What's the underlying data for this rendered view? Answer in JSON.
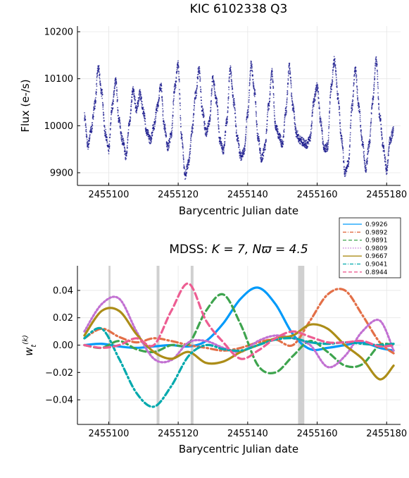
{
  "chart_data": [
    {
      "type": "scatter",
      "title": "KIC 6102338 Q3",
      "xlabel": "Barycentric Julian date",
      "ylabel": "Flux (e-/s)",
      "xlim": [
        2455091,
        2455184
      ],
      "ylim": [
        9873,
        10212
      ],
      "xticks": [
        2455100,
        2455120,
        2455140,
        2455160,
        2455180
      ],
      "yticks": [
        9900,
        10000,
        10100,
        10200
      ],
      "xtick_labels": [
        "2455100",
        "2455120",
        "2455140",
        "2455160",
        "2455180"
      ],
      "ytick_labels": [
        "9900",
        "10000",
        "10100",
        "10200"
      ],
      "grid": true,
      "marker_color": "#1a1a8c",
      "series": [
        {
          "points": [
            [
              2455093.0,
              10020
            ],
            [
              2455094.0,
              9958
            ],
            [
              2455095.0,
              9992
            ],
            [
              2455096.0,
              10045
            ],
            [
              2455097.0,
              10122
            ],
            [
              2455098.0,
              10070
            ],
            [
              2455099.0,
              9985
            ],
            [
              2455100.0,
              9948
            ],
            [
              2455101.0,
              10040
            ],
            [
              2455102.0,
              10095
            ],
            [
              2455103.0,
              10010
            ],
            [
              2455104.0,
              9968
            ],
            [
              2455105.0,
              9935
            ],
            [
              2455106.0,
              10010
            ],
            [
              2455107.0,
              10075
            ],
            [
              2455108.0,
              10035
            ],
            [
              2455109.0,
              10068
            ],
            [
              2455110.0,
              10030
            ],
            [
              2455111.0,
              9985
            ],
            [
              2455112.0,
              9970
            ],
            [
              2455113.0,
              10000
            ],
            [
              2455114.0,
              10040
            ],
            [
              2455115.0,
              10085
            ],
            [
              2455116.0,
              10000
            ],
            [
              2455117.0,
              9955
            ],
            [
              2455118.0,
              9980
            ],
            [
              2455119.0,
              10080
            ],
            [
              2455120.0,
              10130
            ],
            [
              2455121.0,
              9975
            ],
            [
              2455122.0,
              9895
            ],
            [
              2455123.0,
              9920
            ],
            [
              2455124.0,
              9990
            ],
            [
              2455125.0,
              10065
            ],
            [
              2455126.0,
              10120
            ],
            [
              2455127.0,
              10030
            ],
            [
              2455128.0,
              9985
            ],
            [
              2455129.0,
              10010
            ],
            [
              2455130.0,
              10100
            ],
            [
              2455131.0,
              10055
            ],
            [
              2455132.0,
              9970
            ],
            [
              2455133.0,
              9945
            ],
            [
              2455134.0,
              10010
            ],
            [
              2455135.0,
              10120
            ],
            [
              2455136.0,
              10050
            ],
            [
              2455137.0,
              9975
            ],
            [
              2455138.0,
              9935
            ],
            [
              2455139.0,
              9945
            ],
            [
              2455140.0,
              10025
            ],
            [
              2455141.0,
              10130
            ],
            [
              2455142.0,
              10070
            ],
            [
              2455143.0,
              9975
            ],
            [
              2455144.0,
              9930
            ],
            [
              2455145.0,
              9955
            ],
            [
              2455146.0,
              10040
            ],
            [
              2455147.0,
              10115
            ],
            [
              2455148.0,
              10000
            ],
            [
              2455149.0,
              9980
            ],
            [
              2455150.0,
              9960
            ],
            [
              2455151.0,
              10030
            ],
            [
              2455152.0,
              10125
            ],
            [
              2455153.0,
              10040
            ],
            [
              2455154.0,
              9985
            ],
            [
              2455155.0,
              9970
            ],
            [
              2455156.0,
              9965
            ],
            [
              2455157.0,
              9960
            ],
            [
              2455158.0,
              9975
            ],
            [
              2455159.0,
              10050
            ],
            [
              2455160.0,
              10085
            ],
            [
              2455161.0,
              10010
            ],
            [
              2455162.0,
              9950
            ],
            [
              2455163.0,
              9955
            ],
            [
              2455164.0,
              10080
            ],
            [
              2455165.0,
              10140
            ],
            [
              2455166.0,
              10060
            ],
            [
              2455167.0,
              9975
            ],
            [
              2455168.0,
              9900
            ],
            [
              2455169.0,
              9920
            ],
            [
              2455170.0,
              10040
            ],
            [
              2455171.0,
              10120
            ],
            [
              2455172.0,
              10040
            ],
            [
              2455173.0,
              9965
            ],
            [
              2455174.0,
              9910
            ],
            [
              2455175.0,
              9960
            ],
            [
              2455176.0,
              10055
            ],
            [
              2455177.0,
              10140
            ],
            [
              2455178.0,
              10020
            ],
            [
              2455179.0,
              9955
            ],
            [
              2455180.0,
              9905
            ],
            [
              2455181.0,
              9970
            ],
            [
              2455182.0,
              9990
            ]
          ]
        }
      ]
    },
    {
      "type": "line",
      "title_text": "MDSS: ",
      "title_math": "K = 7, Nϖ = 4.5",
      "xlabel": "Barycentric Julian date",
      "ylabel": "w_t^(k)",
      "xlim": [
        2455091,
        2455184
      ],
      "ylim": [
        -0.058,
        0.058
      ],
      "xticks": [
        2455100,
        2455120,
        2455140,
        2455160,
        2455180
      ],
      "yticks": [
        -0.04,
        -0.02,
        0.0,
        0.02,
        0.04
      ],
      "xtick_labels": [
        "2455100",
        "2455120",
        "2455140",
        "2455160",
        "2455180"
      ],
      "ytick_labels": [
        "−0.04",
        "−0.02",
        "0.00",
        "0.02",
        "0.04"
      ],
      "grid": true,
      "legend_position": "top-right",
      "gap_bands": [
        [
          2455100.0,
          2455100.4
        ],
        [
          2455113.8,
          2455114.6
        ],
        [
          2455123.6,
          2455124.4
        ],
        [
          2455154.5,
          2455156.3
        ]
      ],
      "x": [
        2455093,
        2455098,
        2455103,
        2455108,
        2455113,
        2455118,
        2455123,
        2455128,
        2455133,
        2455138,
        2455143,
        2455148,
        2455153,
        2455158,
        2455163,
        2455168,
        2455173,
        2455178,
        2455182
      ],
      "series": [
        {
          "name": "0.9926",
          "color": "#009AFA",
          "dash": "solid",
          "values": [
            0.0,
            0.001,
            -0.001,
            -0.002,
            -0.001,
            0.0,
            -0.001,
            0.003,
            0.016,
            0.034,
            0.042,
            0.03,
            0.008,
            -0.003,
            -0.002,
            0.0,
            0.002,
            -0.002,
            -0.004
          ]
        },
        {
          "name": "0.9892",
          "color": "#E36F47",
          "dash": "dashdot",
          "values": [
            0.005,
            0.012,
            0.006,
            0.002,
            0.005,
            0.003,
            0.0,
            -0.002,
            -0.004,
            -0.002,
            0.002,
            0.004,
            0.0,
            0.018,
            0.037,
            0.04,
            0.022,
            0.002,
            -0.006
          ]
        },
        {
          "name": "0.9891",
          "color": "#3EA44E",
          "dash": "dash",
          "values": [
            0.0,
            -0.002,
            0.003,
            -0.003,
            -0.005,
            0.0,
            0.001,
            0.025,
            0.037,
            0.015,
            -0.015,
            -0.02,
            -0.008,
            0.003,
            -0.005,
            -0.015,
            -0.014,
            0.0,
            0.0
          ]
        },
        {
          "name": "0.9809",
          "color": "#C271D2",
          "dash": "dot",
          "values": [
            0.01,
            0.03,
            0.034,
            0.01,
            -0.01,
            -0.011,
            0.002,
            0.003,
            -0.002,
            -0.005,
            0.003,
            0.007,
            0.005,
            0.0,
            -0.016,
            -0.008,
            0.01,
            0.018,
            -0.004
          ]
        },
        {
          "name": "0.9667",
          "color": "#AC8D18",
          "dash": "solid",
          "values": [
            0.007,
            0.025,
            0.025,
            0.008,
            -0.005,
            -0.01,
            -0.005,
            -0.013,
            -0.012,
            -0.005,
            0.0,
            0.005,
            0.007,
            0.015,
            0.012,
            0.0,
            -0.01,
            -0.025,
            -0.015
          ]
        },
        {
          "name": "0.9041",
          "color": "#00A9AD",
          "dash": "dashdot",
          "values": [
            0.005,
            0.012,
            -0.01,
            -0.035,
            -0.045,
            -0.03,
            -0.008,
            0.0,
            -0.003,
            -0.004,
            0.0,
            0.004,
            0.005,
            0.002,
            0.001,
            0.002,
            0.001,
            0.0,
            0.001
          ]
        },
        {
          "name": "0.8944",
          "color": "#ED5D92",
          "dash": "dash",
          "values": [
            0.0,
            -0.002,
            0.0,
            0.005,
            0.0,
            0.025,
            0.045,
            0.018,
            0.002,
            -0.01,
            -0.004,
            0.005,
            0.01,
            0.006,
            0.002,
            0.002,
            0.003,
            -0.001,
            0.0
          ]
        }
      ]
    }
  ]
}
